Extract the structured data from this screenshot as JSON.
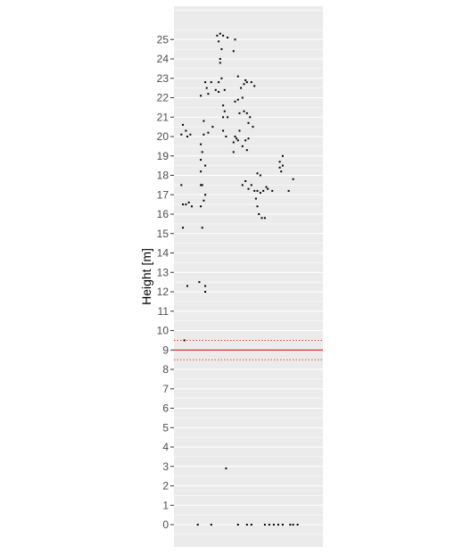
{
  "chart_data": {
    "type": "scatter",
    "ylabel": "Height [m]",
    "xlabel": "",
    "ylim": [
      -1,
      26.5
    ],
    "xlim": [
      0,
      100
    ],
    "grid": true,
    "y_ticks": [
      0,
      1,
      2,
      3,
      4,
      5,
      6,
      7,
      8,
      9,
      10,
      11,
      12,
      13,
      14,
      15,
      16,
      17,
      18,
      19,
      20,
      21,
      22,
      23,
      24,
      25
    ],
    "reference_lines": [
      {
        "y": 9.0,
        "style": "solid",
        "color": "#cc0000"
      },
      {
        "y": 9.5,
        "style": "dotted",
        "color": "#cc0000"
      },
      {
        "y": 8.5,
        "style": "dotted",
        "color": "#cc0000"
      }
    ],
    "colors": {
      "panel": "#ebebeb",
      "grid": "#ffffff",
      "point": "#000000",
      "tick": "#4d4d4d"
    },
    "points": [
      {
        "x": 7,
        "y": 9.5
      },
      {
        "x": 5,
        "y": 20.1
      },
      {
        "x": 6,
        "y": 20.6
      },
      {
        "x": 8,
        "y": 20.3
      },
      {
        "x": 9,
        "y": 20.0
      },
      {
        "x": 11,
        "y": 20.1
      },
      {
        "x": 5,
        "y": 17.5
      },
      {
        "x": 6,
        "y": 16.5
      },
      {
        "x": 8,
        "y": 16.5
      },
      {
        "x": 10,
        "y": 16.6
      },
      {
        "x": 12,
        "y": 16.4
      },
      {
        "x": 6,
        "y": 15.3
      },
      {
        "x": 9,
        "y": 12.3
      },
      {
        "x": 17,
        "y": 12.5
      },
      {
        "x": 21,
        "y": 12.3
      },
      {
        "x": 21,
        "y": 12.0
      },
      {
        "x": 18,
        "y": 22.1
      },
      {
        "x": 21,
        "y": 22.8
      },
      {
        "x": 22,
        "y": 22.5
      },
      {
        "x": 23,
        "y": 22.2
      },
      {
        "x": 25,
        "y": 22.8
      },
      {
        "x": 20,
        "y": 20.8
      },
      {
        "x": 20,
        "y": 20.1
      },
      {
        "x": 23,
        "y": 20.2
      },
      {
        "x": 26,
        "y": 20.5
      },
      {
        "x": 18,
        "y": 19.6
      },
      {
        "x": 19,
        "y": 19.2
      },
      {
        "x": 18,
        "y": 18.8
      },
      {
        "x": 21,
        "y": 18.5
      },
      {
        "x": 18,
        "y": 18.2
      },
      {
        "x": 18,
        "y": 17.5
      },
      {
        "x": 19,
        "y": 17.5
      },
      {
        "x": 21,
        "y": 17.0
      },
      {
        "x": 20,
        "y": 16.7
      },
      {
        "x": 18,
        "y": 16.4
      },
      {
        "x": 19,
        "y": 15.3
      },
      {
        "x": 29,
        "y": 25.2
      },
      {
        "x": 31,
        "y": 25.3
      },
      {
        "x": 33,
        "y": 25.2
      },
      {
        "x": 36,
        "y": 25.1
      },
      {
        "x": 41,
        "y": 25.0
      },
      {
        "x": 30,
        "y": 24.9
      },
      {
        "x": 32,
        "y": 24.5
      },
      {
        "x": 31,
        "y": 24.0
      },
      {
        "x": 31,
        "y": 23.8
      },
      {
        "x": 40,
        "y": 24.4
      },
      {
        "x": 30,
        "y": 22.8
      },
      {
        "x": 32,
        "y": 23.0
      },
      {
        "x": 28,
        "y": 22.4
      },
      {
        "x": 30,
        "y": 22.3
      },
      {
        "x": 34,
        "y": 22.4
      },
      {
        "x": 33,
        "y": 21.6
      },
      {
        "x": 34,
        "y": 21.3
      },
      {
        "x": 33,
        "y": 21.0
      },
      {
        "x": 36,
        "y": 21.0
      },
      {
        "x": 33,
        "y": 20.3
      },
      {
        "x": 35,
        "y": 20.0
      },
      {
        "x": 43,
        "y": 23.1
      },
      {
        "x": 45,
        "y": 22.5
      },
      {
        "x": 47,
        "y": 22.7
      },
      {
        "x": 48,
        "y": 22.9
      },
      {
        "x": 49,
        "y": 22.8
      },
      {
        "x": 46,
        "y": 22.0
      },
      {
        "x": 41,
        "y": 21.8
      },
      {
        "x": 43,
        "y": 21.9
      },
      {
        "x": 44,
        "y": 21.2
      },
      {
        "x": 41,
        "y": 20.0
      },
      {
        "x": 43,
        "y": 19.8
      },
      {
        "x": 40,
        "y": 19.7
      },
      {
        "x": 42,
        "y": 19.9
      },
      {
        "x": 44,
        "y": 20.3
      },
      {
        "x": 48,
        "y": 19.8
      },
      {
        "x": 50,
        "y": 19.9
      },
      {
        "x": 46,
        "y": 19.5
      },
      {
        "x": 40,
        "y": 19.2
      },
      {
        "x": 49,
        "y": 19.3
      },
      {
        "x": 47,
        "y": 21.3
      },
      {
        "x": 49,
        "y": 21.2
      },
      {
        "x": 51,
        "y": 21.0
      },
      {
        "x": 50,
        "y": 20.7
      },
      {
        "x": 53,
        "y": 20.5
      },
      {
        "x": 54,
        "y": 22.6
      },
      {
        "x": 52,
        "y": 22.8
      },
      {
        "x": 46,
        "y": 17.5
      },
      {
        "x": 48,
        "y": 17.7
      },
      {
        "x": 50,
        "y": 17.3
      },
      {
        "x": 52,
        "y": 17.5
      },
      {
        "x": 54,
        "y": 17.2
      },
      {
        "x": 55,
        "y": 16.8
      },
      {
        "x": 56,
        "y": 16.4
      },
      {
        "x": 57,
        "y": 16.0
      },
      {
        "x": 59,
        "y": 15.8
      },
      {
        "x": 61,
        "y": 15.8
      },
      {
        "x": 56,
        "y": 18.1
      },
      {
        "x": 58,
        "y": 18.0
      },
      {
        "x": 56,
        "y": 17.2
      },
      {
        "x": 58,
        "y": 17.1
      },
      {
        "x": 60,
        "y": 17.2
      },
      {
        "x": 62,
        "y": 17.4
      },
      {
        "x": 63,
        "y": 17.3
      },
      {
        "x": 66,
        "y": 17.2
      },
      {
        "x": 71,
        "y": 18.7
      },
      {
        "x": 73,
        "y": 19.0
      },
      {
        "x": 71,
        "y": 18.4
      },
      {
        "x": 73,
        "y": 18.5
      },
      {
        "x": 72,
        "y": 18.2
      },
      {
        "x": 77,
        "y": 17.2
      },
      {
        "x": 80,
        "y": 17.8
      },
      {
        "x": 35,
        "y": 2.9
      },
      {
        "x": 16,
        "y": 0
      },
      {
        "x": 25,
        "y": 0
      },
      {
        "x": 43,
        "y": 0
      },
      {
        "x": 49,
        "y": 0
      },
      {
        "x": 52,
        "y": 0
      },
      {
        "x": 61,
        "y": 0
      },
      {
        "x": 64,
        "y": 0
      },
      {
        "x": 67,
        "y": 0
      },
      {
        "x": 70,
        "y": 0
      },
      {
        "x": 73,
        "y": 0
      },
      {
        "x": 78,
        "y": 0
      },
      {
        "x": 80,
        "y": 0
      },
      {
        "x": 83,
        "y": 0
      }
    ]
  }
}
